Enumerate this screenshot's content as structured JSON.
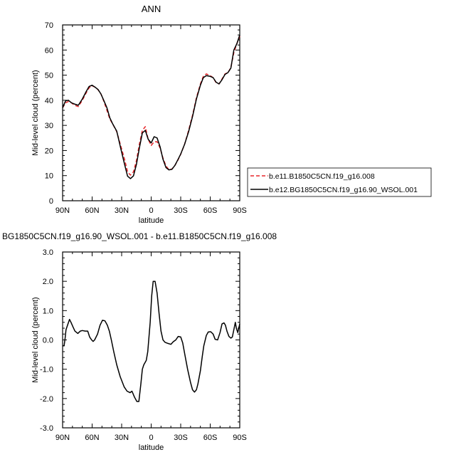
{
  "chart_data": [
    {
      "type": "line",
      "title": "ANN",
      "xlabel": "latitude",
      "ylabel": "Mid-level cloud (percent)",
      "xlim": [
        90,
        -90
      ],
      "ylim": [
        0,
        70
      ],
      "x_ticks": [
        {
          "value": 90,
          "label": "90N"
        },
        {
          "value": 60,
          "label": "60N"
        },
        {
          "value": 30,
          "label": "30N"
        },
        {
          "value": 0,
          "label": "0"
        },
        {
          "value": -30,
          "label": "30S"
        },
        {
          "value": -60,
          "label": "60S"
        },
        {
          "value": -90,
          "label": "90S"
        }
      ],
      "y_ticks": [
        0,
        10,
        20,
        30,
        40,
        50,
        60,
        70
      ],
      "legend_position": "right",
      "series": [
        {
          "name": "b.e11.B1850C5CN.f19_g16.008",
          "color": "#e8262a",
          "dash": "dashed",
          "x": [
            90,
            87,
            84,
            81,
            78,
            74,
            70,
            66,
            63,
            60,
            57,
            54,
            51,
            48,
            45,
            42,
            39,
            35,
            31,
            27,
            24,
            21,
            18,
            15,
            12,
            9,
            6,
            3,
            0,
            -3,
            -6,
            -9,
            -12,
            -15,
            -18,
            -21,
            -24,
            -27,
            -30,
            -34,
            -38,
            -42,
            -46,
            -50,
            -53,
            -56,
            -60,
            -63,
            -66,
            -69,
            -72,
            -75,
            -78,
            -81,
            -84,
            -87,
            -90
          ],
          "y": [
            37,
            39,
            39.5,
            39,
            38,
            37.5,
            40,
            43,
            45,
            45.8,
            45.2,
            44.2,
            42.5,
            39.5,
            36,
            32.5,
            30.5,
            27.5,
            22,
            16.5,
            11.5,
            10.2,
            11.5,
            16,
            22.5,
            28,
            29.5,
            24.5,
            22,
            23.5,
            23.5,
            21,
            17,
            13.8,
            12.4,
            12.6,
            14,
            16,
            18.5,
            22.5,
            28,
            34,
            41,
            46.5,
            49.5,
            50.5,
            49.8,
            49,
            47,
            46.5,
            48.5,
            50.5,
            51,
            53,
            59,
            62.5,
            65.5
          ]
        },
        {
          "name": "b.e12.BG1850C5CN.f19_g16.90_WSOL.001",
          "color": "#000000",
          "dash": "solid",
          "x": [
            90,
            87,
            84,
            81,
            78,
            74,
            70,
            66,
            63,
            60,
            57,
            54,
            51,
            48,
            45,
            42,
            39,
            35,
            31,
            27,
            24,
            21,
            18,
            15,
            12,
            9,
            6,
            3,
            0,
            -3,
            -6,
            -9,
            -12,
            -15,
            -18,
            -21,
            -24,
            -27,
            -30,
            -34,
            -38,
            -42,
            -46,
            -50,
            -53,
            -56,
            -60,
            -63,
            -66,
            -69,
            -72,
            -75,
            -78,
            -81,
            -84,
            -87,
            -90
          ],
          "y": [
            37,
            39.8,
            40,
            39,
            38.5,
            38,
            40.5,
            43.5,
            45.5,
            46,
            45.2,
            44.3,
            42.5,
            39.8,
            37,
            33,
            30.5,
            27.7,
            21,
            14.5,
            9.8,
            8.8,
            9.9,
            14.5,
            21,
            27,
            28,
            24.5,
            23,
            25.5,
            25,
            21.5,
            16.5,
            13.2,
            12.3,
            12.5,
            14,
            16.2,
            18.6,
            22.5,
            27.5,
            33.5,
            40.5,
            46,
            49,
            49.8,
            49.5,
            49,
            47.2,
            46.5,
            48.2,
            50.3,
            51,
            52.8,
            60,
            62.5,
            66
          ]
        }
      ]
    },
    {
      "type": "line",
      "title": "BG1850C5CN.f19_g16.90_WSOL.001 - b.e11.B1850C5CN.f19_g16.008",
      "xlabel": "latitude",
      "ylabel": "Mid-level cloud (percent)",
      "xlim": [
        90,
        -90
      ],
      "ylim": [
        -3,
        3
      ],
      "x_ticks": [
        {
          "value": 90,
          "label": "90N"
        },
        {
          "value": 60,
          "label": "60N"
        },
        {
          "value": 30,
          "label": "30N"
        },
        {
          "value": 0,
          "label": "0"
        },
        {
          "value": -30,
          "label": "30S"
        },
        {
          "value": -60,
          "label": "60S"
        },
        {
          "value": -90,
          "label": "90S"
        }
      ],
      "y_ticks": [
        {
          "value": 3,
          "label": "3.0"
        },
        {
          "value": 2,
          "label": "2.0"
        },
        {
          "value": 1,
          "label": "1.0"
        },
        {
          "value": 0,
          "label": "0.0"
        },
        {
          "value": -1,
          "label": "-1.0"
        },
        {
          "value": -2,
          "label": "-2.0"
        },
        {
          "value": -3,
          "label": "-3.0"
        }
      ],
      "series": [
        {
          "color": "#000000",
          "dash": "solid",
          "x": [
            90,
            88.5,
            87.5,
            86.5,
            84.5,
            83,
            81.5,
            79.5,
            77.5,
            74.5,
            72,
            70,
            67,
            64.5,
            62.5,
            60.5,
            59,
            57.5,
            54.5,
            52,
            49.5,
            47,
            44.5,
            42.5,
            40.5,
            38,
            35,
            31.5,
            27.5,
            24.5,
            21.5,
            19.5,
            17,
            14.5,
            12.5,
            10.5,
            9,
            7.5,
            5,
            3.5,
            1,
            -0.5,
            -2,
            -4,
            -6,
            -8,
            -10,
            -12,
            -14,
            -17,
            -20,
            -22.5,
            -25,
            -27.5,
            -30,
            -32,
            -34.5,
            -37,
            -40,
            -42,
            -44,
            -46,
            -47.5,
            -50,
            -52,
            -53.5,
            -56,
            -58,
            -60.5,
            -63,
            -65,
            -67.5,
            -70,
            -72,
            -74,
            -75.5,
            -77,
            -79,
            -81,
            -82.5,
            -84,
            -85.5,
            -86.5,
            -88,
            -90
          ],
          "y": [
            -0.2,
            -0.2,
            0.05,
            0.35,
            0.55,
            0.7,
            0.6,
            0.45,
            0.3,
            0.22,
            0.3,
            0.32,
            0.3,
            0.3,
            0.1,
            0.0,
            -0.05,
            0.0,
            0.2,
            0.5,
            0.67,
            0.65,
            0.5,
            0.3,
            0.0,
            -0.4,
            -0.85,
            -1.25,
            -1.6,
            -1.75,
            -1.8,
            -1.75,
            -1.95,
            -2.1,
            -2.1,
            -1.5,
            -1.0,
            -0.85,
            -0.7,
            -0.4,
            0.6,
            1.5,
            2.0,
            2.0,
            1.6,
            0.9,
            0.3,
            0.0,
            -0.08,
            -0.12,
            -0.15,
            -0.06,
            0.0,
            0.12,
            0.1,
            -0.1,
            -0.55,
            -1.0,
            -1.45,
            -1.7,
            -1.78,
            -1.7,
            -1.5,
            -1.05,
            -0.55,
            -0.2,
            0.15,
            0.27,
            0.28,
            0.2,
            0.02,
            0.0,
            0.25,
            0.55,
            0.58,
            0.5,
            0.3,
            0.12,
            0.06,
            0.1,
            0.35,
            0.6,
            0.4,
            0.25,
            0.55
          ]
        }
      ]
    }
  ]
}
